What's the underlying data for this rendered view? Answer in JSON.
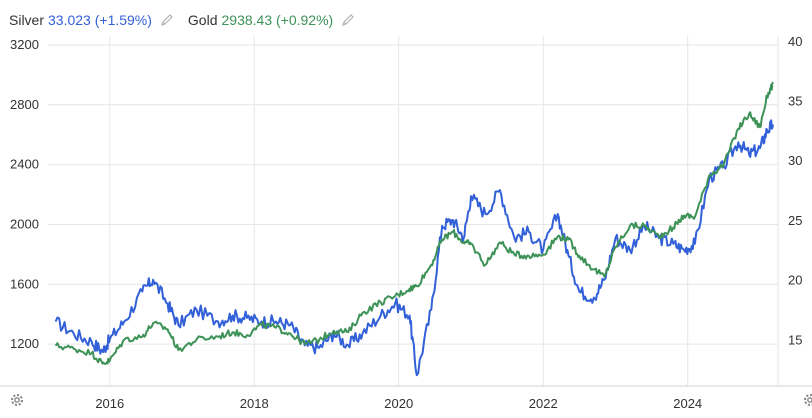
{
  "legend": {
    "silver": {
      "name": "Silver",
      "value": "33.023 (+1.59%)"
    },
    "gold": {
      "name": "Gold",
      "value": "2938.43 (+0.92%)"
    }
  },
  "icons": {
    "edit": "pencil-icon",
    "settings": "gear-icon"
  },
  "chart_data": {
    "type": "line",
    "grid": true,
    "x_range": [
      2015.2,
      2025.25
    ],
    "x_ticks": [
      "2016",
      "2018",
      "2020",
      "2022",
      "2024"
    ],
    "x_tick_values": [
      2016,
      2018,
      2020,
      2022,
      2024
    ],
    "y_left": {
      "ticks": [
        "1200",
        "1600",
        "2000",
        "2400",
        "2800",
        "3200"
      ],
      "range": [
        920,
        3260
      ],
      "series": "Gold"
    },
    "y_right": {
      "ticks": [
        "15",
        "20",
        "25",
        "30",
        "35",
        "40"
      ],
      "range": [
        11.1,
        40.4
      ],
      "series": "Silver"
    },
    "series": [
      {
        "name": "Gold",
        "axis": "left",
        "color": "#3d9257",
        "x": [
          2015.25,
          2015.5,
          2015.75,
          2015.9,
          2016.0,
          2016.2,
          2016.45,
          2016.6,
          2016.8,
          2016.95,
          2017.2,
          2017.5,
          2017.7,
          2017.9,
          2018.1,
          2018.3,
          2018.5,
          2018.7,
          2018.9,
          2019.1,
          2019.3,
          2019.5,
          2019.75,
          2019.95,
          2020.15,
          2020.25,
          2020.45,
          2020.6,
          2020.75,
          2020.9,
          2021.0,
          2021.2,
          2021.4,
          2021.6,
          2021.8,
          2022.0,
          2022.2,
          2022.35,
          2022.5,
          2022.7,
          2022.85,
          2023.0,
          2023.2,
          2023.4,
          2023.6,
          2023.8,
          2023.95,
          2024.1,
          2024.3,
          2024.5,
          2024.7,
          2024.85,
          2025.0,
          2025.1,
          2025.18
        ],
        "y": [
          1190,
          1170,
          1140,
          1070,
          1090,
          1230,
          1250,
          1340,
          1300,
          1160,
          1230,
          1250,
          1280,
          1260,
          1330,
          1310,
          1270,
          1200,
          1230,
          1290,
          1280,
          1410,
          1480,
          1520,
          1570,
          1590,
          1730,
          1900,
          1950,
          1880,
          1870,
          1730,
          1880,
          1800,
          1790,
          1800,
          1920,
          1900,
          1790,
          1700,
          1650,
          1850,
          1990,
          1990,
          1920,
          1980,
          2060,
          2050,
          2330,
          2400,
          2640,
          2740,
          2650,
          2860,
          2938
        ]
      },
      {
        "name": "Silver",
        "axis": "right",
        "color": "#3260d8",
        "x": [
          2015.25,
          2015.5,
          2015.75,
          2015.9,
          2016.0,
          2016.2,
          2016.45,
          2016.6,
          2016.8,
          2016.95,
          2017.2,
          2017.5,
          2017.7,
          2017.9,
          2018.1,
          2018.3,
          2018.5,
          2018.7,
          2018.9,
          2019.1,
          2019.3,
          2019.5,
          2019.75,
          2019.95,
          2020.15,
          2020.25,
          2020.45,
          2020.6,
          2020.75,
          2020.9,
          2021.0,
          2021.2,
          2021.4,
          2021.6,
          2021.8,
          2022.0,
          2022.2,
          2022.35,
          2022.5,
          2022.7,
          2022.85,
          2023.0,
          2023.2,
          2023.4,
          2023.6,
          2023.8,
          2023.95,
          2024.1,
          2024.3,
          2024.5,
          2024.7,
          2024.85,
          2025.0,
          2025.1,
          2025.18
        ],
        "y": [
          16.5,
          15.5,
          14.8,
          14.0,
          15.0,
          16.5,
          19.0,
          20.0,
          18.0,
          16.2,
          17.5,
          16.5,
          17.0,
          16.8,
          16.5,
          16.5,
          16.2,
          14.5,
          14.3,
          15.5,
          14.5,
          15.5,
          17.0,
          18.0,
          17.0,
          12.0,
          17.5,
          24.5,
          25.0,
          23.5,
          27.0,
          25.5,
          27.5,
          23.5,
          24.0,
          22.5,
          25.5,
          22.0,
          19.0,
          18.5,
          20.0,
          23.5,
          22.5,
          24.5,
          23.5,
          23.0,
          22.5,
          23.0,
          28.5,
          29.5,
          31.5,
          30.5,
          31.0,
          32.5,
          33.0
        ]
      }
    ]
  }
}
